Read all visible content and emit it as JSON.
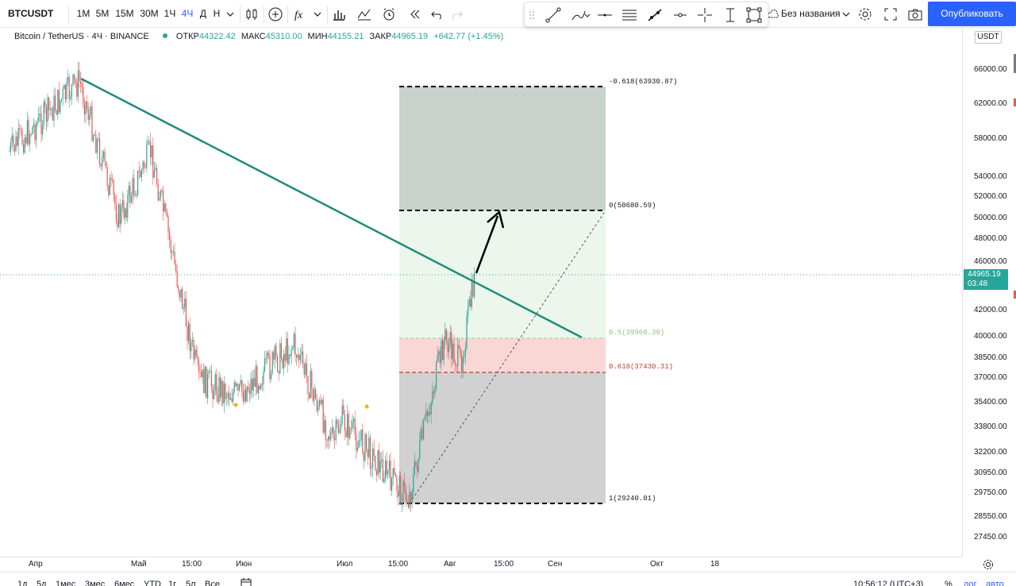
{
  "toolbar": {
    "symbol": "BTCUSDT",
    "intervals": [
      "1М",
      "5М",
      "15М",
      "30М",
      "1Ч",
      "4Ч",
      "Д",
      "Н"
    ],
    "active_interval": "4Ч",
    "layout_name": "Без названия",
    "publish_label": "Опубликовать"
  },
  "legend": {
    "title": "Bitcoin / TetherUS · 4Ч · BINANCE",
    "open_label": "ОТКР",
    "open": "44322.42",
    "high_label": "МАКС",
    "high": "45310.00",
    "low_label": "МИН",
    "low": "44155.21",
    "close_label": "ЗАКР",
    "close": "44965.19",
    "change": "+642.77 (+1.45%)"
  },
  "price_scale": {
    "currency": "USDT",
    "labels": [
      "66000.00",
      "62000.00",
      "58000.00",
      "54000.00",
      "52000.00",
      "50000.00",
      "48000.00",
      "46000.00",
      "42000.00",
      "40000.00",
      "38500.00",
      "37000.00",
      "35400.00",
      "33800.00",
      "32200.00",
      "30950.00",
      "29750.00",
      "28550.00",
      "27450.00"
    ],
    "last_price": "44965.19",
    "countdown": "03:48"
  },
  "fib": {
    "levels": [
      {
        "label": "-0.618(63930.87)",
        "price": 63930.87
      },
      {
        "label": "0(50680.59)",
        "price": 50680.59
      },
      {
        "label": "0.5(39960.30)",
        "price": 39960.3
      },
      {
        "label": "0.618(37430.31)",
        "price": 37430.31
      },
      {
        "label": "1(29240.01)",
        "price": 29240.01
      }
    ]
  },
  "time_axis": {
    "labels": [
      "Апр",
      "Май",
      "15:00",
      "Июн",
      "Июл",
      "15:00",
      "Авг",
      "15:00",
      "Сен",
      "Окт",
      "18"
    ]
  },
  "bottombar": {
    "ranges": [
      "1д",
      "5д",
      "1мес",
      "3мес",
      "6мес",
      "YTD",
      "1г",
      "5л",
      "Все"
    ],
    "clock": "10:56:12 (UTC+3)",
    "percent": "%",
    "log": "лог",
    "auto": "авто"
  },
  "colors": {
    "accent": "#2962ff",
    "up": "#26a69a",
    "down": "#ef5350",
    "trendline": "#1e8c7a"
  },
  "chart_data": {
    "type": "candlestick",
    "symbol": "BTCUSDT",
    "interval": "4Ч",
    "series_close_approx": [
      {
        "x": "Апр",
        "y": 57000
      },
      {
        "x": "mid-Apr",
        "y": 64500
      },
      {
        "x": "late-Apr",
        "y": 50000
      },
      {
        "x": "Май",
        "y": 57000
      },
      {
        "x": "mid-May",
        "y": 37000
      },
      {
        "x": "Июн",
        "y": 36000
      },
      {
        "x": "mid-Jun",
        "y": 39500
      },
      {
        "x": "late-Jun",
        "y": 33000
      },
      {
        "x": "Июл",
        "y": 34500
      },
      {
        "x": "late-Jul",
        "y": 29500
      },
      {
        "x": "early-Aug",
        "y": 40000
      },
      {
        "x": "Авг",
        "y": 38000
      },
      {
        "x": "current",
        "y": 44965.19
      }
    ],
    "ylim": [
      27000,
      68000
    ]
  }
}
